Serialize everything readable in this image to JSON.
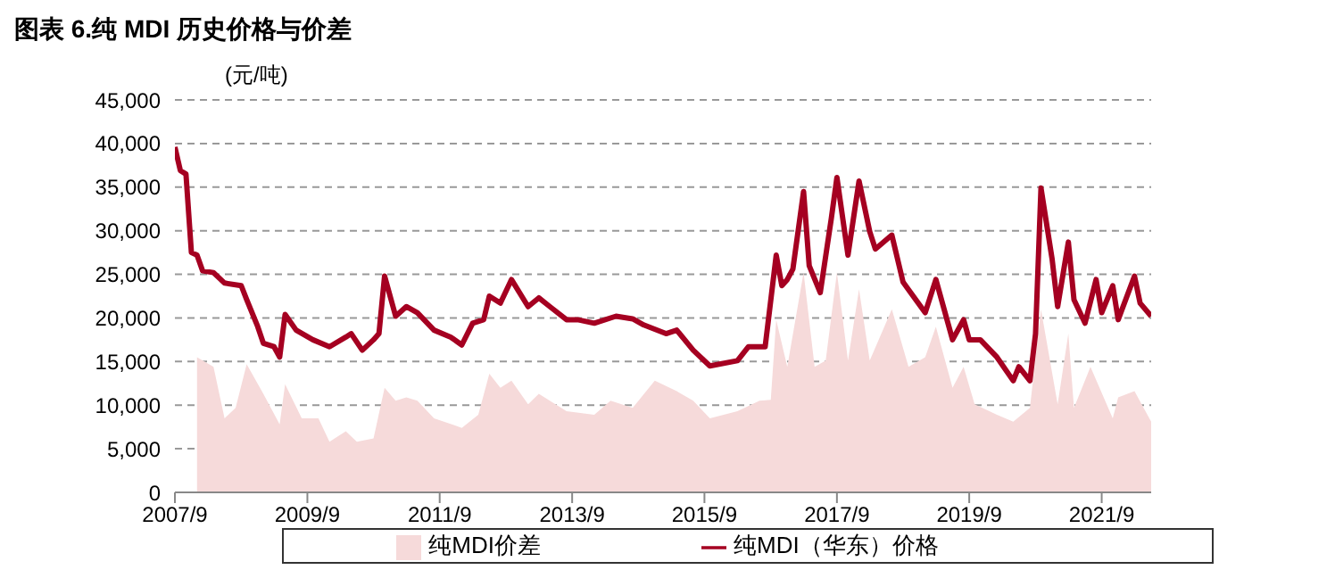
{
  "chart_data": {
    "type": "line",
    "title": "图表 6.纯 MDI 历史价格与价差",
    "ylabel": "(元/吨)",
    "xlim": [
      "2007-09",
      "2022-06"
    ],
    "xticks": [
      {
        "value": "2007-09",
        "label": "2007/9"
      },
      {
        "value": "2009-09",
        "label": "2009/9"
      },
      {
        "value": "2011-09",
        "label": "2011/9"
      },
      {
        "value": "2013-09",
        "label": "2013/9"
      },
      {
        "value": "2015-09",
        "label": "2015/9"
      },
      {
        "value": "2017-09",
        "label": "2017/9"
      },
      {
        "value": "2019-09",
        "label": "2019/9"
      },
      {
        "value": "2021-09",
        "label": "2021/9"
      }
    ],
    "ylim": [
      0,
      45000
    ],
    "yticks": [
      0,
      {
        "value": 5000,
        "label": "5,000"
      },
      {
        "value": 10000,
        "label": "10,000"
      },
      {
        "value": 15000,
        "label": "15,000"
      },
      {
        "value": 20000,
        "label": "20,000"
      },
      {
        "value": 25000,
        "label": "25,000"
      },
      {
        "value": 30000,
        "label": "30,000"
      },
      {
        "value": 35000,
        "label": "35,000"
      },
      {
        "value": 40000,
        "label": "40,000"
      },
      {
        "value": 45000,
        "label": "45,000"
      }
    ],
    "grid": "y",
    "legend": "bottom",
    "marker": "none",
    "line_style": "solid",
    "series": [
      {
        "name": "纯MDI价差",
        "type": "area",
        "color": "#f6dada",
        "x": [
          "2008-01",
          "2008-04",
          "2008-06",
          "2008-08",
          "2008-10",
          "2009-01",
          "2009-04",
          "2009-05",
          "2009-08",
          "2009-11",
          "2010-01",
          "2010-04",
          "2010-06",
          "2010-09",
          "2010-11",
          "2011-01",
          "2011-03",
          "2011-05",
          "2011-08",
          "2012-01",
          "2012-04",
          "2012-06",
          "2012-08",
          "2012-10",
          "2013-01",
          "2013-03",
          "2013-08",
          "2014-01",
          "2014-04",
          "2014-08",
          "2014-12",
          "2015-04",
          "2015-07",
          "2015-10",
          "2016-03",
          "2016-07",
          "2016-09",
          "2016-10",
          "2016-12",
          "2017-03",
          "2017-05",
          "2017-07",
          "2017-09",
          "2017-11",
          "2018-01",
          "2018-03",
          "2018-07",
          "2018-10",
          "2019-01",
          "2019-03",
          "2019-06",
          "2019-08",
          "2019-10",
          "2020-02",
          "2020-05",
          "2020-08",
          "2020-10",
          "2021-01",
          "2021-03",
          "2021-04",
          "2021-07",
          "2021-11",
          "2021-12",
          "2022-03",
          "2022-06"
        ],
        "values": [
          15500,
          14400,
          8500,
          9700,
          14700,
          11300,
          7800,
          12400,
          8500,
          8500,
          5800,
          7000,
          5800,
          6200,
          12000,
          10500,
          10900,
          10500,
          8500,
          7400,
          8900,
          13600,
          12000,
          12800,
          10100,
          11300,
          9300,
          8900,
          10500,
          9700,
          12800,
          11600,
          10500,
          8500,
          9300,
          10500,
          10600,
          19800,
          14400,
          25200,
          14400,
          15100,
          25200,
          15100,
          23300,
          15100,
          21000,
          14400,
          15500,
          19000,
          12000,
          14400,
          10100,
          8900,
          8100,
          9700,
          21000,
          10100,
          18200,
          9700,
          14400,
          8500,
          10900,
          11600,
          8100
        ]
      },
      {
        "name": "纯MDI（华东）价格",
        "color": "#a50021",
        "x": [
          "2007-09",
          "2007-10",
          "2007-11",
          "2007-12",
          "2008-01",
          "2008-02",
          "2008-04",
          "2008-06",
          "2008-09",
          "2008-10",
          "2008-12",
          "2009-01",
          "2009-03",
          "2009-04",
          "2009-05",
          "2009-07",
          "2009-10",
          "2010-01",
          "2010-04",
          "2010-05",
          "2010-07",
          "2010-09",
          "2010-10",
          "2010-11",
          "2011-01",
          "2011-03",
          "2011-05",
          "2011-08",
          "2011-11",
          "2012-01",
          "2012-03",
          "2012-05",
          "2012-06",
          "2012-08",
          "2012-10",
          "2013-01",
          "2013-03",
          "2013-05",
          "2013-08",
          "2013-10",
          "2014-01",
          "2014-05",
          "2014-08",
          "2014-10",
          "2015-02",
          "2015-04",
          "2015-07",
          "2015-10",
          "2016-03",
          "2016-05",
          "2016-08",
          "2016-10",
          "2016-11",
          "2016-12",
          "2017-01",
          "2017-03",
          "2017-04",
          "2017-06",
          "2017-08",
          "2017-09",
          "2017-11",
          "2018-01",
          "2018-03",
          "2018-04",
          "2018-07",
          "2018-09",
          "2019-01",
          "2019-03",
          "2019-06",
          "2019-08",
          "2019-09",
          "2019-11",
          "2020-02",
          "2020-05",
          "2020-06",
          "2020-08",
          "2020-09",
          "2020-10",
          "2020-12",
          "2021-01",
          "2021-03",
          "2021-04",
          "2021-06",
          "2021-08",
          "2021-09",
          "2021-11",
          "2021-12",
          "2022-03",
          "2022-04",
          "2022-06"
        ],
        "values": [
          39600,
          36900,
          36500,
          27500,
          27200,
          25400,
          25200,
          24000,
          23700,
          22100,
          19000,
          17100,
          16700,
          15500,
          20400,
          18600,
          17500,
          16700,
          17800,
          18200,
          16300,
          17500,
          18200,
          24800,
          20200,
          21300,
          20600,
          18600,
          17800,
          16900,
          19400,
          19800,
          22500,
          21700,
          24400,
          21300,
          22300,
          21300,
          19800,
          19800,
          19400,
          20200,
          19900,
          19200,
          18200,
          18600,
          16300,
          14500,
          15100,
          16700,
          16700,
          27200,
          23700,
          24400,
          25600,
          34500,
          26000,
          22900,
          31400,
          36100,
          27200,
          35700,
          29900,
          27900,
          29500,
          24100,
          20600,
          24400,
          17500,
          19800,
          17500,
          17500,
          15500,
          12800,
          14400,
          12800,
          18200,
          34900,
          26800,
          21300,
          28700,
          22100,
          19400,
          24400,
          20600,
          23700,
          19800,
          24800,
          21700,
          20200
        ]
      }
    ]
  }
}
